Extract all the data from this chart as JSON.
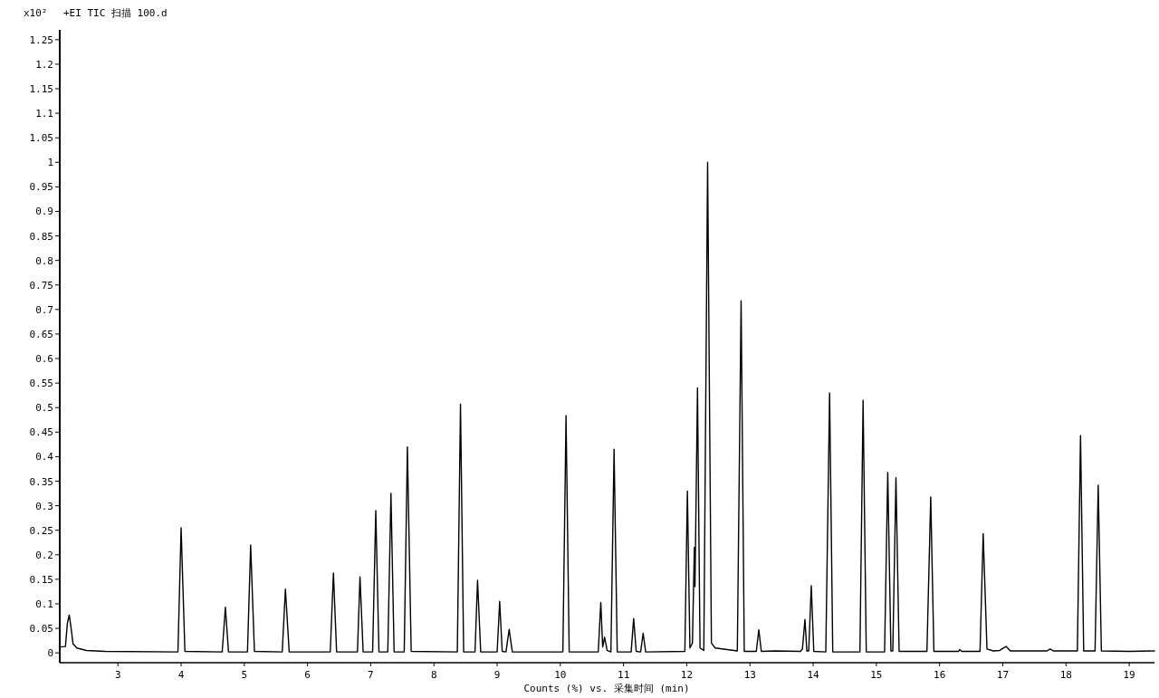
{
  "chart_data": {
    "type": "line",
    "title": "+EI TIC 扫描 100.d",
    "ylabel": "x10²",
    "xlabel": "Counts (%) vs. 采集时间 (min)",
    "xlim": [
      2.08,
      19.4
    ],
    "ylim": [
      -0.02,
      1.27
    ],
    "xticks": [
      3,
      4,
      5,
      6,
      7,
      8,
      9,
      10,
      11,
      12,
      13,
      14,
      15,
      16,
      17,
      18,
      19
    ],
    "yticks": [
      0,
      {
        "value": 0.05,
        "label": "0.05"
      },
      {
        "value": 0.1,
        "label": "0.1"
      },
      {
        "value": 0.15,
        "label": "0.15"
      },
      {
        "value": 0.2,
        "label": "0.2"
      },
      {
        "value": 0.25,
        "label": "0.25"
      },
      {
        "value": 0.3,
        "label": "0.3"
      },
      {
        "value": 0.35,
        "label": "0.35"
      },
      {
        "value": 0.4,
        "label": "0.4"
      },
      {
        "value": 0.45,
        "label": "0.45"
      },
      {
        "value": 0.5,
        "label": "0.5"
      },
      {
        "value": 0.55,
        "label": "0.55"
      },
      {
        "value": 0.6,
        "label": "0.6"
      },
      {
        "value": 0.65,
        "label": "0.65"
      },
      {
        "value": 0.7,
        "label": "0.7"
      },
      {
        "value": 0.75,
        "label": "0.75"
      },
      {
        "value": 0.8,
        "label": "0.8"
      },
      {
        "value": 0.85,
        "label": "0.85"
      },
      {
        "value": 0.9,
        "label": "0.9"
      },
      {
        "value": 0.95,
        "label": "0.95"
      },
      1,
      {
        "value": 1.05,
        "label": "1.05"
      },
      {
        "value": 1.1,
        "label": "1.1"
      },
      {
        "value": 1.15,
        "label": "1.15"
      },
      {
        "value": 1.2,
        "label": "1.2"
      },
      {
        "value": 1.25,
        "label": "1.25"
      }
    ],
    "grid": false,
    "marker": "none",
    "line_style": "solid",
    "x": [
      2.08,
      2.17,
      2.2,
      2.23,
      2.26,
      2.29,
      2.31,
      2.35,
      2.5,
      2.8,
      3.95,
      4.0,
      4.06,
      4.65,
      4.7,
      4.75,
      5.05,
      5.1,
      5.16,
      5.6,
      5.65,
      5.71,
      6.36,
      6.41,
      6.46,
      6.79,
      6.83,
      6.88,
      7.03,
      7.08,
      7.13,
      7.27,
      7.32,
      7.37,
      7.53,
      7.58,
      7.64,
      8.37,
      8.42,
      8.47,
      8.65,
      8.69,
      8.74,
      9.0,
      9.04,
      9.08,
      9.14,
      9.19,
      9.24,
      10.04,
      10.09,
      10.14,
      10.6,
      10.64,
      10.67,
      10.7,
      10.74,
      10.8,
      10.85,
      10.9,
      11.12,
      11.16,
      11.2,
      11.27,
      11.31,
      11.35,
      11.97,
      12.01,
      12.05,
      12.09,
      12.12,
      12.13,
      12.17,
      12.21,
      12.27,
      12.33,
      12.39,
      12.45,
      12.8,
      12.86,
      12.91,
      13.1,
      13.14,
      13.18,
      13.4,
      13.8,
      13.83,
      13.87,
      13.9,
      13.93,
      13.97,
      14.01,
      14.2,
      14.26,
      14.31,
      14.74,
      14.79,
      14.84,
      15.13,
      15.18,
      15.23,
      15.26,
      15.31,
      15.36,
      15.8,
      15.86,
      15.91,
      16.3,
      16.32,
      16.35,
      16.64,
      16.69,
      16.75,
      16.85,
      16.95,
      17.05,
      17.12,
      17.7,
      17.75,
      17.8,
      18.18,
      18.23,
      18.28,
      18.46,
      18.51,
      18.56,
      19.0,
      19.4
    ],
    "series": [
      {
        "color": "#000000",
        "values": [
          0.012,
          0.013,
          0.06,
          0.077,
          0.05,
          0.018,
          0.016,
          0.01,
          0.005,
          0.003,
          0.002,
          0.255,
          0.003,
          0.002,
          0.093,
          0.002,
          0.002,
          0.22,
          0.003,
          0.002,
          0.13,
          0.002,
          0.002,
          0.163,
          0.002,
          0.002,
          0.155,
          0.002,
          0.002,
          0.29,
          0.002,
          0.002,
          0.325,
          0.002,
          0.002,
          0.42,
          0.003,
          0.002,
          0.507,
          0.002,
          0.002,
          0.148,
          0.002,
          0.002,
          0.105,
          0.003,
          0.002,
          0.048,
          0.002,
          0.002,
          0.484,
          0.002,
          0.002,
          0.103,
          0.012,
          0.032,
          0.005,
          0.002,
          0.415,
          0.002,
          0.002,
          0.07,
          0.003,
          0.002,
          0.04,
          0.002,
          0.003,
          0.33,
          0.01,
          0.02,
          0.215,
          0.135,
          0.54,
          0.01,
          0.005,
          1.0,
          0.02,
          0.01,
          0.004,
          0.718,
          0.003,
          0.003,
          0.047,
          0.003,
          0.004,
          0.003,
          0.008,
          0.068,
          0.004,
          0.004,
          0.137,
          0.003,
          0.002,
          0.53,
          0.002,
          0.002,
          0.515,
          0.002,
          0.002,
          0.368,
          0.004,
          0.004,
          0.357,
          0.003,
          0.003,
          0.318,
          0.003,
          0.003,
          0.007,
          0.003,
          0.003,
          0.243,
          0.008,
          0.004,
          0.005,
          0.013,
          0.004,
          0.004,
          0.008,
          0.004,
          0.004,
          0.443,
          0.004,
          0.004,
          0.342,
          0.004,
          0.003,
          0.004
        ]
      }
    ]
  }
}
